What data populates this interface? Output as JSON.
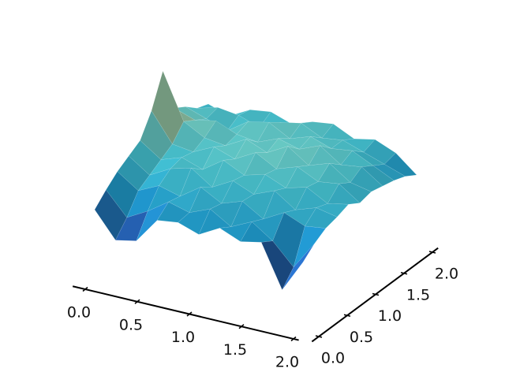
{
  "chart_data": {
    "type": "surface",
    "colormap": "YlGnBu_r",
    "x": [
      0,
      0.2,
      0.4,
      0.6,
      0.8,
      1.0,
      1.2,
      1.4,
      1.6,
      1.8,
      2.0
    ],
    "y": [
      0,
      0.2,
      0.4,
      0.6,
      0.8,
      1.0,
      1.2,
      1.4,
      1.6,
      1.8,
      2.0
    ],
    "z": [
      [
        0.3,
        0.12,
        0.15,
        0.33,
        0.35,
        0.3,
        0.38,
        0.32,
        0.35,
        0.05,
        0.28
      ],
      [
        0.38,
        0.22,
        0.3,
        0.4,
        0.36,
        0.42,
        0.33,
        0.4,
        0.3,
        0.15,
        0.35
      ],
      [
        0.45,
        0.35,
        0.42,
        0.38,
        0.48,
        0.4,
        0.45,
        0.36,
        0.44,
        0.38,
        0.4
      ],
      [
        0.5,
        0.4,
        0.48,
        0.52,
        0.42,
        0.5,
        0.44,
        0.5,
        0.4,
        0.45,
        0.42
      ],
      [
        0.55,
        0.45,
        0.5,
        0.45,
        0.55,
        0.48,
        0.52,
        0.46,
        0.5,
        0.42,
        0.45
      ],
      [
        0.7,
        0.5,
        0.48,
        0.55,
        0.5,
        0.58,
        0.5,
        0.55,
        0.48,
        0.5,
        0.4
      ],
      [
        0.92,
        0.6,
        0.52,
        0.5,
        0.58,
        0.52,
        0.6,
        0.5,
        0.55,
        0.45,
        0.42
      ],
      [
        0.6,
        0.55,
        0.58,
        0.52,
        0.5,
        0.56,
        0.52,
        0.58,
        0.48,
        0.5,
        0.4
      ],
      [
        0.55,
        0.5,
        0.45,
        0.55,
        0.58,
        0.5,
        0.55,
        0.5,
        0.52,
        0.45,
        0.38
      ],
      [
        0.48,
        0.52,
        0.5,
        0.45,
        0.52,
        0.55,
        0.48,
        0.5,
        0.45,
        0.4,
        0.35
      ],
      [
        0.45,
        0.4,
        0.48,
        0.5,
        0.45,
        0.5,
        0.52,
        0.45,
        0.48,
        0.42,
        0.3
      ]
    ],
    "xlim": [
      0,
      2
    ],
    "ylim": [
      0,
      2
    ],
    "zlim": [
      0,
      1
    ],
    "xticks": [
      {
        "value": 0,
        "label": "0.0"
      },
      {
        "value": 0.5,
        "label": "0.5"
      },
      {
        "value": 1,
        "label": "1.0"
      },
      {
        "value": 1.5,
        "label": "1.5"
      },
      {
        "value": 2,
        "label": "2.0"
      }
    ],
    "yticks": [
      {
        "value": 0,
        "label": "0.0"
      },
      {
        "value": 0.5,
        "label": "0.5"
      },
      {
        "value": 1,
        "label": "1.0"
      },
      {
        "value": 1.5,
        "label": "1.5"
      },
      {
        "value": 2,
        "label": "2.0"
      }
    ]
  }
}
